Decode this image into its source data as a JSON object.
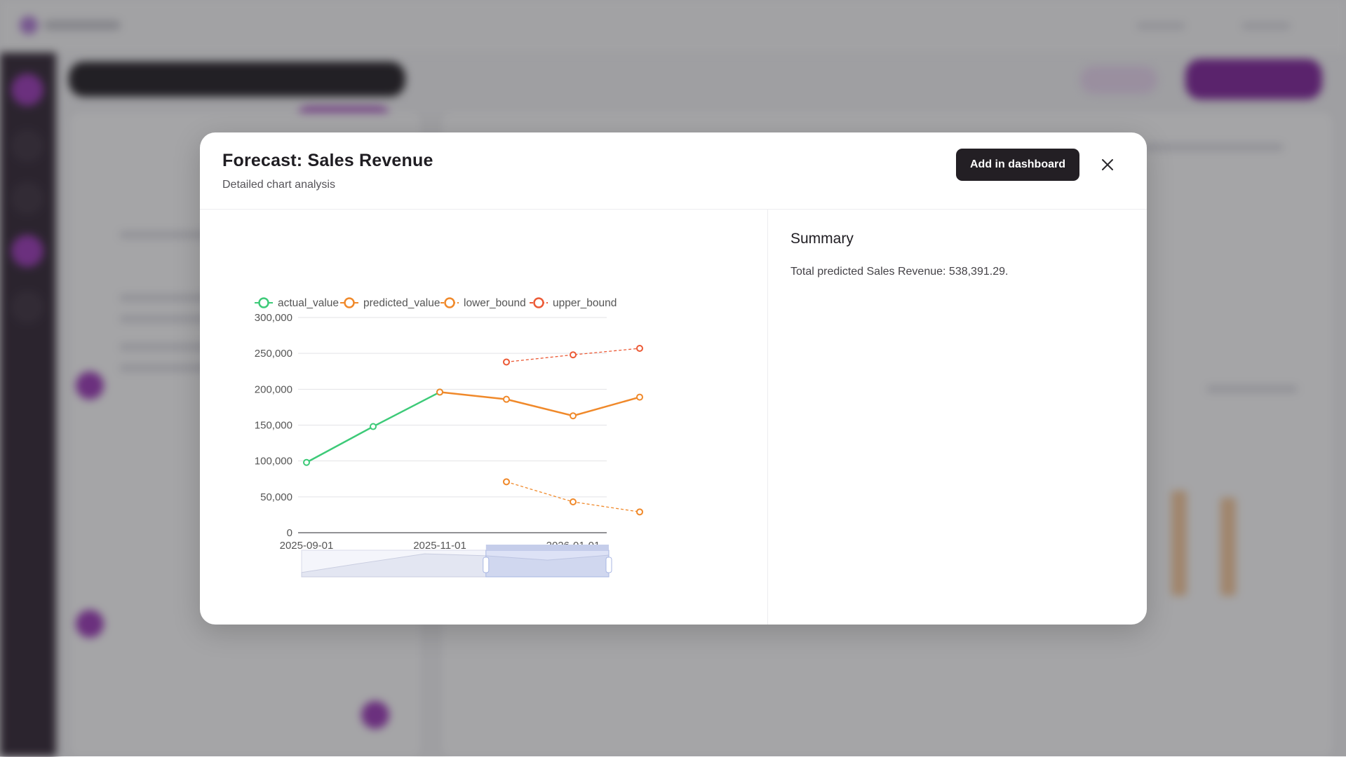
{
  "modal": {
    "title": "Forecast: Sales Revenue",
    "subtitle": "Detailed chart analysis",
    "add_button_label": "Add in dashboard",
    "close_icon": "close-icon"
  },
  "summary": {
    "title": "Summary",
    "text": "Total predicted Sales Revenue: 538,391.29."
  },
  "colors": {
    "actual": "#3dca78",
    "predicted": "#f0892a",
    "lower": "#f0892a",
    "upper": "#ec5a36",
    "primary_button": "#231f24"
  },
  "chart_data": {
    "type": "line",
    "x": [
      "2025-09-01",
      "2025-10-01",
      "2025-11-01",
      "2025-12-01",
      "2026-01-01",
      "2026-02-01"
    ],
    "x_tick_labels": [
      "2025-09-01",
      "2025-11-01",
      "2026-01-01"
    ],
    "y_tick_labels": [
      "0",
      "50,000",
      "100,000",
      "150,000",
      "200,000",
      "250,000",
      "300,000"
    ],
    "ylim": [
      0,
      300000
    ],
    "grid": true,
    "legend_position": "top",
    "series": [
      {
        "name": "actual_value",
        "style": "solid",
        "values": [
          98000,
          148000,
          196000,
          null,
          null,
          null
        ]
      },
      {
        "name": "predicted_value",
        "style": "solid",
        "values": [
          null,
          null,
          196000,
          186000,
          163000,
          189000
        ]
      },
      {
        "name": "lower_bound",
        "style": "dashed",
        "values": [
          null,
          null,
          null,
          71000,
          43000,
          29000
        ]
      },
      {
        "name": "upper_bound",
        "style": "dashed",
        "values": [
          null,
          null,
          null,
          238000,
          248000,
          257000
        ]
      }
    ],
    "zoom_slider": {
      "window_start": 0.6,
      "window_end": 1.0
    }
  }
}
